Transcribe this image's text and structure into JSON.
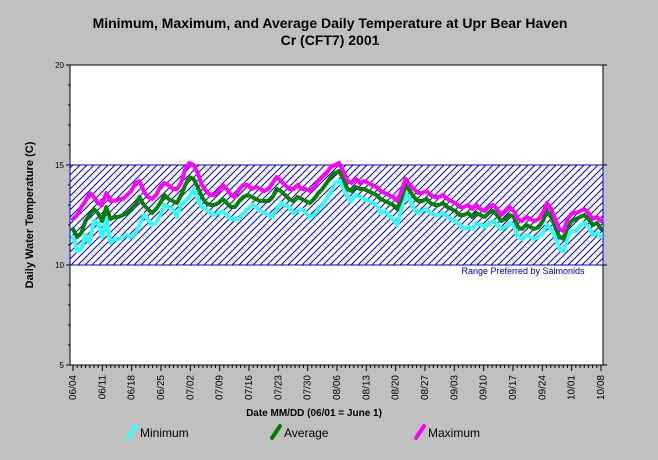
{
  "chart_data": {
    "type": "line",
    "title": "Minimum, Maximum, and Average Daily Temperature at Upr Bear Haven Cr (CFT7) 2001",
    "title_lines": [
      "Minimum, Maximum, and Average Daily Temperature at Upr Bear Haven",
      "Cr (CFT7) 2001"
    ],
    "xlabel": "Date MM/DD (06/01 = June 1)",
    "ylabel": "Daily Water Temperature (C)",
    "ylim": [
      5,
      20
    ],
    "yticks": [
      5,
      10,
      15,
      20
    ],
    "x_start": "06/04",
    "x_end": "10/08",
    "x_tick_labels": [
      "06/04",
      "06/11",
      "06/18",
      "06/25",
      "07/02",
      "07/09",
      "07/16",
      "07/23",
      "07/30",
      "08/06",
      "08/13",
      "08/20",
      "08/27",
      "09/03",
      "09/10",
      "09/17",
      "09/24",
      "10/01",
      "10/08"
    ],
    "grid": false,
    "legend_position": "bottom",
    "preferred_range": {
      "low": 10,
      "high": 15,
      "label": "Range Preferred by Salmonids",
      "color": "#0000cc"
    },
    "series": [
      {
        "name": "Minimum",
        "color": "#33ffff",
        "values": [
          11.4,
          10.7,
          10.8,
          11.5,
          11.1,
          12.2,
          12.1,
          11.4,
          12.3,
          11.1,
          11.3,
          11.3,
          11.4,
          11.5,
          11.4,
          11.6,
          12.0,
          12.5,
          12.3,
          12.0,
          12.1,
          12.5,
          13.0,
          12.9,
          12.8,
          12.4,
          13.0,
          13.2,
          13.4,
          13.8,
          13.3,
          12.9,
          12.8,
          12.6,
          12.5,
          12.6,
          12.7,
          12.5,
          12.3,
          12.3,
          12.3,
          12.6,
          12.8,
          13.0,
          12.9,
          12.7,
          12.6,
          12.5,
          12.4,
          12.8,
          13.1,
          13.0,
          12.9,
          12.6,
          12.7,
          12.8,
          12.6,
          12.4,
          12.5,
          12.8,
          13.0,
          13.3,
          13.6,
          14.1,
          14.2,
          13.9,
          13.4,
          13.2,
          13.5,
          13.4,
          13.3,
          13.2,
          13.1,
          13.0,
          12.6,
          12.7,
          12.5,
          12.3,
          12.0,
          12.8,
          13.6,
          13.3,
          12.8,
          12.6,
          12.7,
          12.8,
          12.6,
          12.5,
          12.5,
          12.6,
          12.4,
          12.3,
          12.2,
          12.0,
          11.8,
          11.9,
          11.8,
          12.1,
          12.0,
          11.9,
          12.1,
          12.2,
          12.0,
          11.8,
          11.9,
          12.1,
          12.0,
          11.4,
          11.3,
          11.5,
          11.4,
          11.3,
          11.4,
          11.6,
          12.0,
          11.8,
          11.4,
          10.8,
          10.7,
          11.4,
          11.7,
          11.7,
          12.0,
          12.1,
          11.9,
          11.5,
          11.6,
          11.4
        ]
      },
      {
        "name": "Average",
        "color": "#008000",
        "values": [
          11.8,
          11.4,
          11.6,
          12.2,
          12.5,
          12.8,
          12.6,
          12.2,
          12.9,
          12.3,
          12.4,
          12.4,
          12.5,
          12.6,
          12.8,
          13.0,
          13.4,
          13.0,
          12.8,
          12.6,
          12.8,
          13.1,
          13.5,
          13.3,
          13.2,
          13.1,
          13.5,
          14.0,
          14.4,
          14.3,
          13.9,
          13.4,
          13.1,
          13.0,
          13.0,
          13.1,
          13.3,
          13.1,
          12.9,
          12.9,
          13.2,
          13.4,
          13.5,
          13.4,
          13.3,
          13.2,
          13.2,
          13.2,
          13.4,
          13.8,
          13.7,
          13.5,
          13.3,
          13.2,
          13.4,
          13.3,
          13.2,
          13.1,
          13.3,
          13.6,
          13.8,
          14.1,
          14.4,
          14.6,
          14.7,
          14.3,
          13.8,
          13.7,
          13.9,
          13.8,
          13.8,
          13.7,
          13.6,
          13.5,
          13.3,
          13.2,
          13.1,
          13.0,
          12.8,
          13.3,
          14.0,
          13.7,
          13.4,
          13.2,
          13.2,
          13.3,
          13.1,
          13.0,
          13.0,
          13.1,
          12.9,
          12.8,
          12.7,
          12.5,
          12.5,
          12.6,
          12.4,
          12.6,
          12.5,
          12.4,
          12.6,
          12.7,
          12.5,
          12.2,
          12.3,
          12.5,
          12.4,
          11.9,
          11.8,
          12.0,
          11.9,
          11.8,
          11.9,
          12.2,
          12.7,
          12.4,
          11.9,
          11.4,
          11.3,
          11.9,
          12.2,
          12.3,
          12.4,
          12.5,
          12.3,
          12.0,
          12.1,
          11.8
        ]
      },
      {
        "name": "Maximum",
        "color": "#ff00ff",
        "values": [
          12.3,
          12.5,
          12.9,
          13.2,
          13.6,
          13.4,
          13.1,
          13.0,
          13.6,
          13.2,
          13.2,
          13.3,
          13.3,
          13.5,
          13.7,
          14.1,
          14.2,
          13.7,
          13.4,
          13.3,
          13.5,
          13.9,
          14.1,
          14.0,
          13.8,
          13.8,
          14.1,
          14.8,
          15.1,
          15.0,
          14.6,
          14.0,
          13.7,
          13.5,
          13.5,
          13.7,
          14.0,
          13.8,
          13.5,
          13.4,
          13.8,
          14.0,
          14.0,
          13.8,
          13.9,
          13.8,
          13.7,
          13.8,
          14.1,
          14.4,
          14.2,
          14.0,
          13.8,
          13.8,
          14.0,
          13.8,
          13.8,
          13.7,
          13.9,
          14.2,
          14.4,
          14.6,
          14.9,
          15.0,
          15.1,
          14.7,
          14.2,
          14.1,
          14.3,
          14.1,
          14.2,
          14.1,
          14.0,
          13.9,
          13.7,
          13.6,
          13.5,
          13.4,
          13.2,
          13.7,
          14.3,
          14.0,
          13.8,
          13.6,
          13.6,
          13.7,
          13.5,
          13.4,
          13.4,
          13.5,
          13.3,
          13.2,
          13.1,
          12.9,
          12.9,
          13.0,
          12.8,
          13.0,
          12.8,
          12.7,
          12.9,
          13.0,
          12.8,
          12.5,
          12.7,
          12.9,
          12.7,
          12.3,
          12.2,
          12.4,
          12.3,
          12.2,
          12.3,
          12.6,
          13.1,
          12.8,
          12.3,
          11.8,
          11.7,
          12.3,
          12.6,
          12.6,
          12.7,
          12.8,
          12.6,
          12.3,
          12.4,
          12.2
        ]
      }
    ]
  }
}
